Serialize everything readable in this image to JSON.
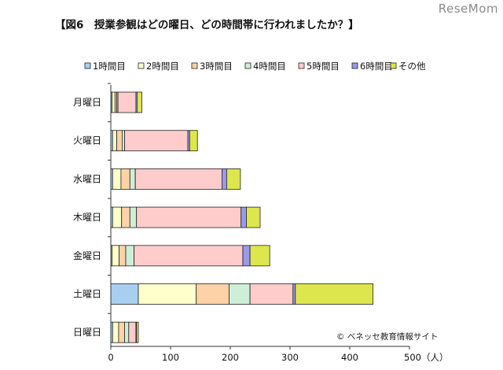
{
  "title": "【図6　授業参観はどの曜日、どの時間帯に行われましたか？】",
  "watermark": "ReseMom",
  "credit": "© ベネッセ教育情報サイト",
  "chart_data": {
    "type": "bar",
    "orientation": "horizontal",
    "stacked": true,
    "categories": [
      "月曜日",
      "火曜日",
      "水曜日",
      "木曜日",
      "金曜日",
      "土曜日",
      "日曜日"
    ],
    "series": [
      {
        "name": "1時間目",
        "color": "#a9cff0",
        "values": [
          2,
          3,
          3,
          3,
          2,
          46,
          3
        ]
      },
      {
        "name": "2時間目",
        "color": "#ffffcc",
        "values": [
          5,
          7,
          14,
          15,
          12,
          97,
          10
        ]
      },
      {
        "name": "3時間目",
        "color": "#fcd2a6",
        "values": [
          3,
          9,
          15,
          14,
          11,
          55,
          10
        ]
      },
      {
        "name": "4時間目",
        "color": "#cfeed8",
        "values": [
          2,
          4,
          9,
          11,
          14,
          35,
          7
        ]
      },
      {
        "name": "5時間目",
        "color": "#ffcccc",
        "values": [
          30,
          106,
          145,
          175,
          182,
          72,
          12
        ]
      },
      {
        "name": "6時間目",
        "color": "#9999ee",
        "values": [
          2,
          3,
          8,
          9,
          12,
          4,
          1
        ]
      },
      {
        "name": "その他",
        "color": "#dde64c",
        "values": [
          8,
          13,
          23,
          23,
          33,
          130,
          3
        ]
      }
    ],
    "xlim": [
      0,
      500
    ],
    "xticks": [
      0,
      100,
      200,
      300,
      400,
      500
    ],
    "xtick_labels": [
      "0",
      "100",
      "200",
      "300",
      "400",
      "500（人）"
    ],
    "legend_position": "top",
    "grid": false
  }
}
